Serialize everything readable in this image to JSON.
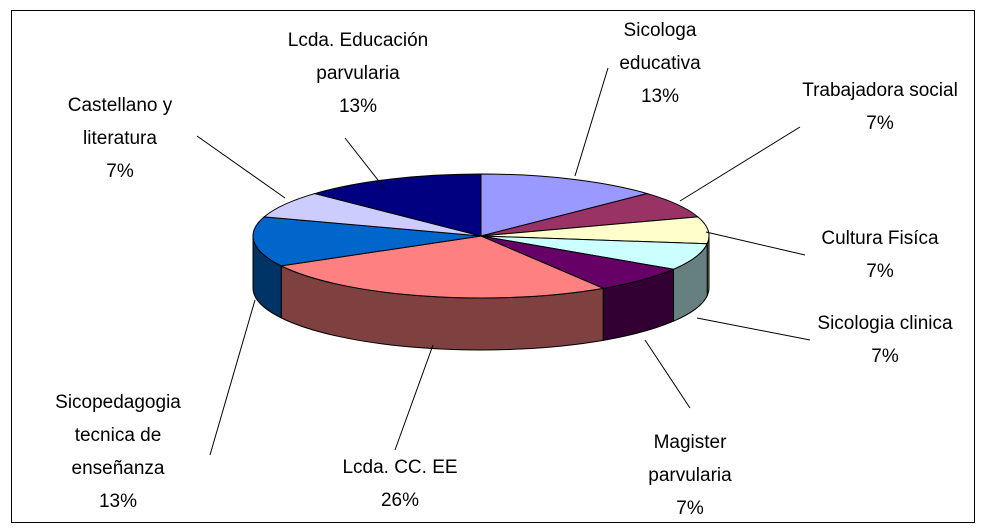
{
  "chart_data": {
    "type": "pie3d",
    "categories": [
      "Sicologa educativa",
      "Trabajadora social",
      "Cultura Fisíca",
      "Sicologia clinica",
      "Magister parvularia",
      "Lcda. CC. EE",
      "Sicopedagogia tecnica de enseñanza",
      "Castellano y literatura",
      "Lcda. Educación parvularia"
    ],
    "values": [
      13,
      7,
      7,
      7,
      7,
      26,
      13,
      7,
      13
    ],
    "value_labels": [
      "13%",
      "7%",
      "7%",
      "7%",
      "7%",
      "26%",
      "13%",
      "7%",
      "13%"
    ],
    "colors": [
      "#9999ff",
      "#993366",
      "#ffffcc",
      "#ccffff",
      "#660066",
      "#ff8080",
      "#0066cc",
      "#ccccff",
      "#000080"
    ]
  }
}
